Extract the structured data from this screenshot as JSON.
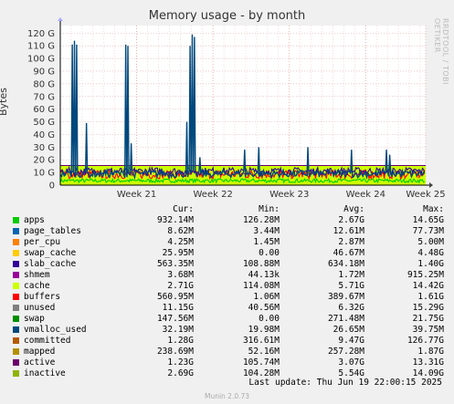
{
  "title": "Memory usage - by month",
  "watermark": "RRDTOOL / TOBI OETIKER",
  "footer": "Munin 2.0.73",
  "last_update": "Last update: Thu Jun 19 22:00:15 2025",
  "legend_headers": {
    "cur": "Cur:",
    "min": "Min:",
    "avg": "Avg:",
    "max": "Max:"
  },
  "legend": [
    {
      "name": "apps",
      "color": "#00cc00",
      "cur": "932.14M",
      "min": "126.28M",
      "avg": "2.67G",
      "max": "14.65G"
    },
    {
      "name": "page_tables",
      "color": "#0066b3",
      "cur": "8.62M",
      "min": "3.44M",
      "avg": "12.61M",
      "max": "77.73M"
    },
    {
      "name": "per_cpu",
      "color": "#ff8000",
      "cur": "4.25M",
      "min": "1.45M",
      "avg": "2.87M",
      "max": "5.00M"
    },
    {
      "name": "swap_cache",
      "color": "#ffcc00",
      "cur": "25.95M",
      "min": "0.00",
      "avg": "46.67M",
      "max": "4.48G"
    },
    {
      "name": "slab_cache",
      "color": "#330099",
      "cur": "563.35M",
      "min": "108.88M",
      "avg": "634.18M",
      "max": "1.40G"
    },
    {
      "name": "shmem",
      "color": "#990099",
      "cur": "3.68M",
      "min": "44.13k",
      "avg": "1.72M",
      "max": "915.25M"
    },
    {
      "name": "cache",
      "color": "#ccff00",
      "cur": "2.71G",
      "min": "114.08M",
      "avg": "5.71G",
      "max": "14.42G"
    },
    {
      "name": "buffers",
      "color": "#ff0000",
      "cur": "560.95M",
      "min": "1.06M",
      "avg": "389.67M",
      "max": "1.61G"
    },
    {
      "name": "unused",
      "color": "#808080",
      "cur": "11.15G",
      "min": "40.56M",
      "avg": "6.32G",
      "max": "15.29G"
    },
    {
      "name": "swap",
      "color": "#008f00",
      "cur": "147.56M",
      "min": "0.00",
      "avg": "271.48M",
      "max": "21.75G"
    },
    {
      "name": "vmalloc_used",
      "color": "#00487d",
      "cur": "32.19M",
      "min": "19.98M",
      "avg": "26.65M",
      "max": "39.75M"
    },
    {
      "name": "committed",
      "color": "#b35a00",
      "cur": "1.28G",
      "min": "316.61M",
      "avg": "9.47G",
      "max": "126.77G"
    },
    {
      "name": "mapped",
      "color": "#b38f00",
      "cur": "238.69M",
      "min": "52.16M",
      "avg": "257.28M",
      "max": "1.87G"
    },
    {
      "name": "active",
      "color": "#6b006b",
      "cur": "1.23G",
      "min": "105.74M",
      "avg": "3.07G",
      "max": "13.31G"
    },
    {
      "name": "inactive",
      "color": "#8fb300",
      "cur": "2.69G",
      "min": "104.28M",
      "avg": "5.54G",
      "max": "14.09G"
    }
  ],
  "chart_data": {
    "type": "area",
    "title": "Memory usage - by month",
    "ylabel": "Bytes",
    "ylim": [
      0,
      126
    ],
    "yticks": [
      0,
      10,
      20,
      30,
      40,
      50,
      60,
      70,
      80,
      90,
      100,
      110,
      120
    ],
    "ytick_labels": [
      "0",
      "10 G",
      "20 G",
      "30 G",
      "40 G",
      "50 G",
      "60 G",
      "70 G",
      "80 G",
      "90 G",
      "100 G",
      "110 G",
      "120 G"
    ],
    "xlim": [
      0,
      33.5
    ],
    "xticks": [
      7,
      14,
      21,
      28,
      33.5
    ],
    "xtick_labels": [
      "Week 21",
      "Week 22",
      "Week 23",
      "Week 24",
      "Week 25"
    ],
    "grid": true,
    "series": [
      {
        "name": "unused",
        "color": "#ccff00",
        "shape": "band",
        "values": [
          15.5
        ]
      },
      {
        "name": "cache",
        "color": "#00cc00",
        "shape": "noise",
        "values": [
          2,
          5
        ]
      },
      {
        "name": "buffers",
        "color": "#ff0000",
        "shape": "noise",
        "values": [
          5,
          12
        ]
      },
      {
        "name": "inactive",
        "color": "#330099",
        "shape": "noise",
        "values": [
          8,
          14
        ]
      },
      {
        "name": "committed",
        "color": "#00487d",
        "spikes": [
          {
            "x": 1.1,
            "y": 111
          },
          {
            "x": 1.3,
            "y": 114
          },
          {
            "x": 1.5,
            "y": 111
          },
          {
            "x": 2.4,
            "y": 49
          },
          {
            "x": 6.0,
            "y": 111
          },
          {
            "x": 6.2,
            "y": 110
          },
          {
            "x": 6.5,
            "y": 33
          },
          {
            "x": 11.6,
            "y": 50
          },
          {
            "x": 11.9,
            "y": 110
          },
          {
            "x": 12.1,
            "y": 119
          },
          {
            "x": 12.3,
            "y": 117
          },
          {
            "x": 12.8,
            "y": 22
          },
          {
            "x": 16.9,
            "y": 28
          },
          {
            "x": 18.2,
            "y": 30
          },
          {
            "x": 22.7,
            "y": 30
          },
          {
            "x": 26.7,
            "y": 28
          },
          {
            "x": 29.9,
            "y": 28
          },
          {
            "x": 30.2,
            "y": 24
          }
        ]
      }
    ]
  }
}
